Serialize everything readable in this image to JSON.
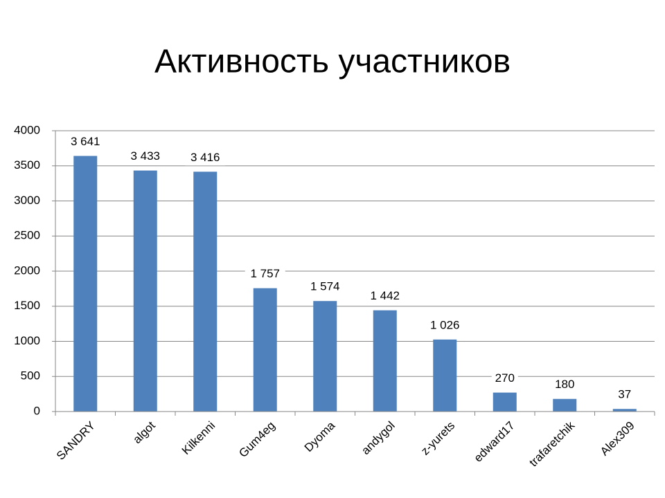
{
  "chart_data": {
    "type": "bar",
    "title": "Активность участников",
    "categories": [
      "SANDRY",
      "algot",
      "Kilkenni",
      "Gum4eg",
      "Dyoma",
      "andygol",
      "z-yurets",
      "edward17",
      "trafaretchik",
      "Alex309"
    ],
    "values": [
      3641,
      3433,
      3416,
      1757,
      1574,
      1442,
      1026,
      270,
      180,
      37
    ],
    "value_labels": [
      "3 641",
      "3 433",
      "3 416",
      "1 757",
      "1 574",
      "1 442",
      "1 026",
      "270",
      "180",
      "37"
    ],
    "color": "#4f81bd",
    "ylim": [
      0,
      4000
    ],
    "yticks": [
      0,
      500,
      1000,
      1500,
      2000,
      2500,
      3000,
      3500,
      4000
    ],
    "grid": true
  }
}
